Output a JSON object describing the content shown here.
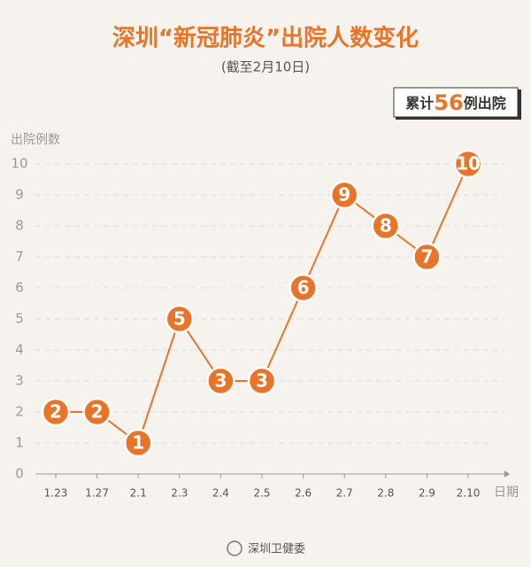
{
  "chart_data": {
    "type": "line",
    "title": "深圳“新冠肺炎”出院人数变化",
    "subtitle": "(截至2月10日)",
    "annotation": {
      "prefix": "累计",
      "value": 56,
      "suffix": "例出院"
    },
    "y_label": "出院例数",
    "x_label": "日期",
    "source": "深圳卫健委",
    "categories": [
      "1.23",
      "1.27",
      "2.1",
      "2.3",
      "2.4",
      "2.5",
      "2.6",
      "2.7",
      "2.8",
      "2.9",
      "2.10"
    ],
    "values": [
      2,
      2,
      1,
      5,
      3,
      3,
      6,
      9,
      8,
      7,
      10
    ],
    "color": "#e8742a",
    "ylim": [
      0,
      10
    ],
    "yticks": [
      0,
      1,
      2,
      3,
      4,
      5,
      6,
      7,
      8,
      9,
      10
    ],
    "grid": true
  }
}
